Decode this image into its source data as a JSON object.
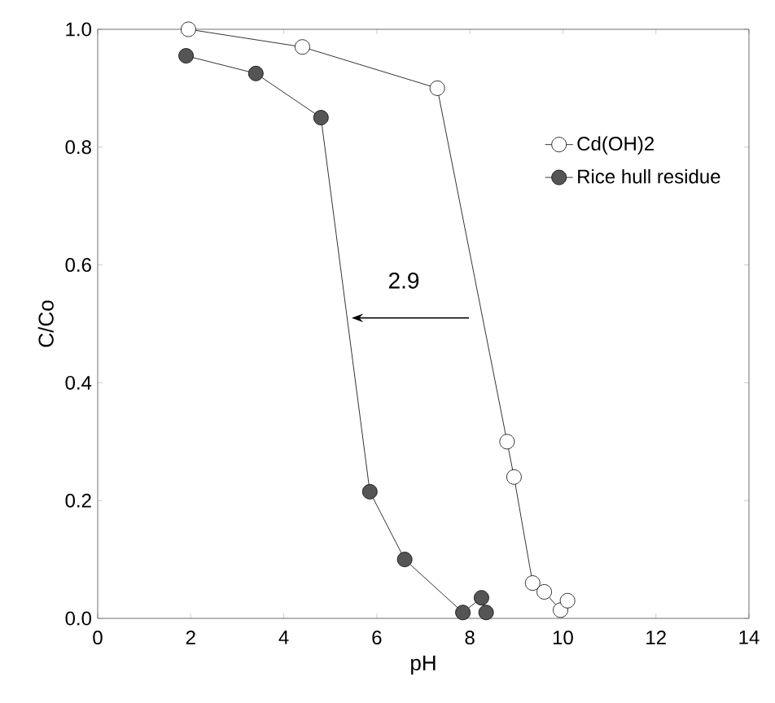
{
  "chart_data": {
    "type": "line",
    "xlabel": "pH",
    "ylabel": "C/Co",
    "xlim": [
      0,
      14
    ],
    "xticks": [
      0,
      2,
      4,
      6,
      8,
      10,
      12,
      14
    ],
    "ylim": [
      0,
      1.0
    ],
    "yticks": [
      {
        "value": 0,
        "label": "0.0"
      },
      {
        "value": 0.2,
        "label": "0.2"
      },
      {
        "value": 0.4,
        "label": "0.4"
      },
      {
        "value": 0.6,
        "label": "0.6"
      },
      {
        "value": 0.8,
        "label": "0.8"
      },
      {
        "value": 1.0,
        "label": "1.0"
      }
    ],
    "series": [
      {
        "name": "Cd(OH)2",
        "color": "#ffffff",
        "x": [
          1.95,
          4.4,
          7.3,
          8.8,
          8.95,
          9.35,
          9.6,
          9.95,
          10.1
        ],
        "values": [
          1.0,
          0.97,
          0.9,
          0.3,
          0.24,
          0.06,
          0.045,
          0.014,
          0.03
        ]
      },
      {
        "name": "Rice hull residue",
        "color": "#555555",
        "x": [
          1.9,
          3.4,
          4.8,
          5.85,
          6.6,
          7.85,
          8.25,
          8.35
        ],
        "values": [
          0.955,
          0.925,
          0.85,
          0.215,
          0.1,
          0.01,
          0.035,
          0.01
        ]
      }
    ],
    "marker": "circle",
    "legend": "top right",
    "annotations": [
      "2.9"
    ]
  }
}
